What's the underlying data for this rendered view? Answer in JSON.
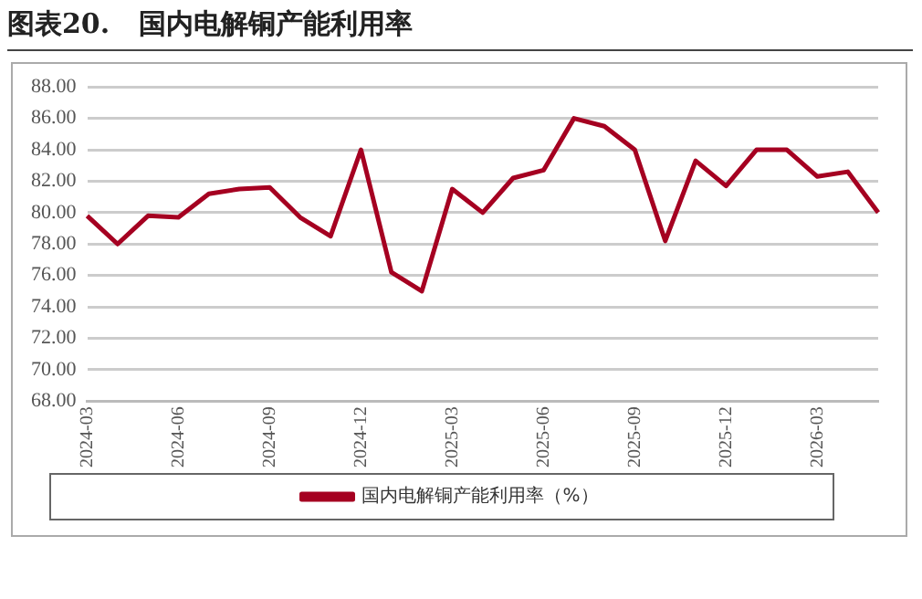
{
  "chart_data": {
    "type": "line",
    "title": "图表20.   国内电解铜产能利用率",
    "categories": [
      "2024-03",
      null,
      null,
      "2024-06",
      null,
      null,
      "2024-09",
      null,
      null,
      "2024-12",
      null,
      null,
      "2025-03",
      null,
      null,
      "2025-06",
      null,
      null,
      "2025-09",
      null,
      null,
      "2025-12",
      null,
      null,
      "2026-03",
      null,
      null
    ],
    "series": [
      {
        "name": "国内电解铜产能利用率（%）",
        "color": "#a50021",
        "values": [
          79.8,
          78.0,
          79.8,
          79.7,
          81.2,
          81.5,
          81.6,
          79.7,
          78.5,
          84.0,
          76.2,
          75.0,
          81.5,
          80.0,
          82.2,
          82.7,
          86.0,
          85.5,
          84.0,
          78.2,
          83.3,
          81.7,
          84.0,
          84.0,
          82.3,
          82.6,
          80.0
        ]
      }
    ],
    "ylim": [
      68,
      88
    ],
    "yticks": [
      {
        "value": 68,
        "label": "68.00"
      },
      {
        "value": 70,
        "label": "70.00"
      },
      {
        "value": 72,
        "label": "72.00"
      },
      {
        "value": 74,
        "label": "74.00"
      },
      {
        "value": 76,
        "label": "76.00"
      },
      {
        "value": 78,
        "label": "78.00"
      },
      {
        "value": 80,
        "label": "80.00"
      },
      {
        "value": 82,
        "label": "82.00"
      },
      {
        "value": 84,
        "label": "84.00"
      },
      {
        "value": 86,
        "label": "86.00"
      },
      {
        "value": 88,
        "label": "88.00"
      }
    ],
    "grid": "y",
    "legend": "bottom",
    "marker": "none",
    "line_style": "solid"
  }
}
